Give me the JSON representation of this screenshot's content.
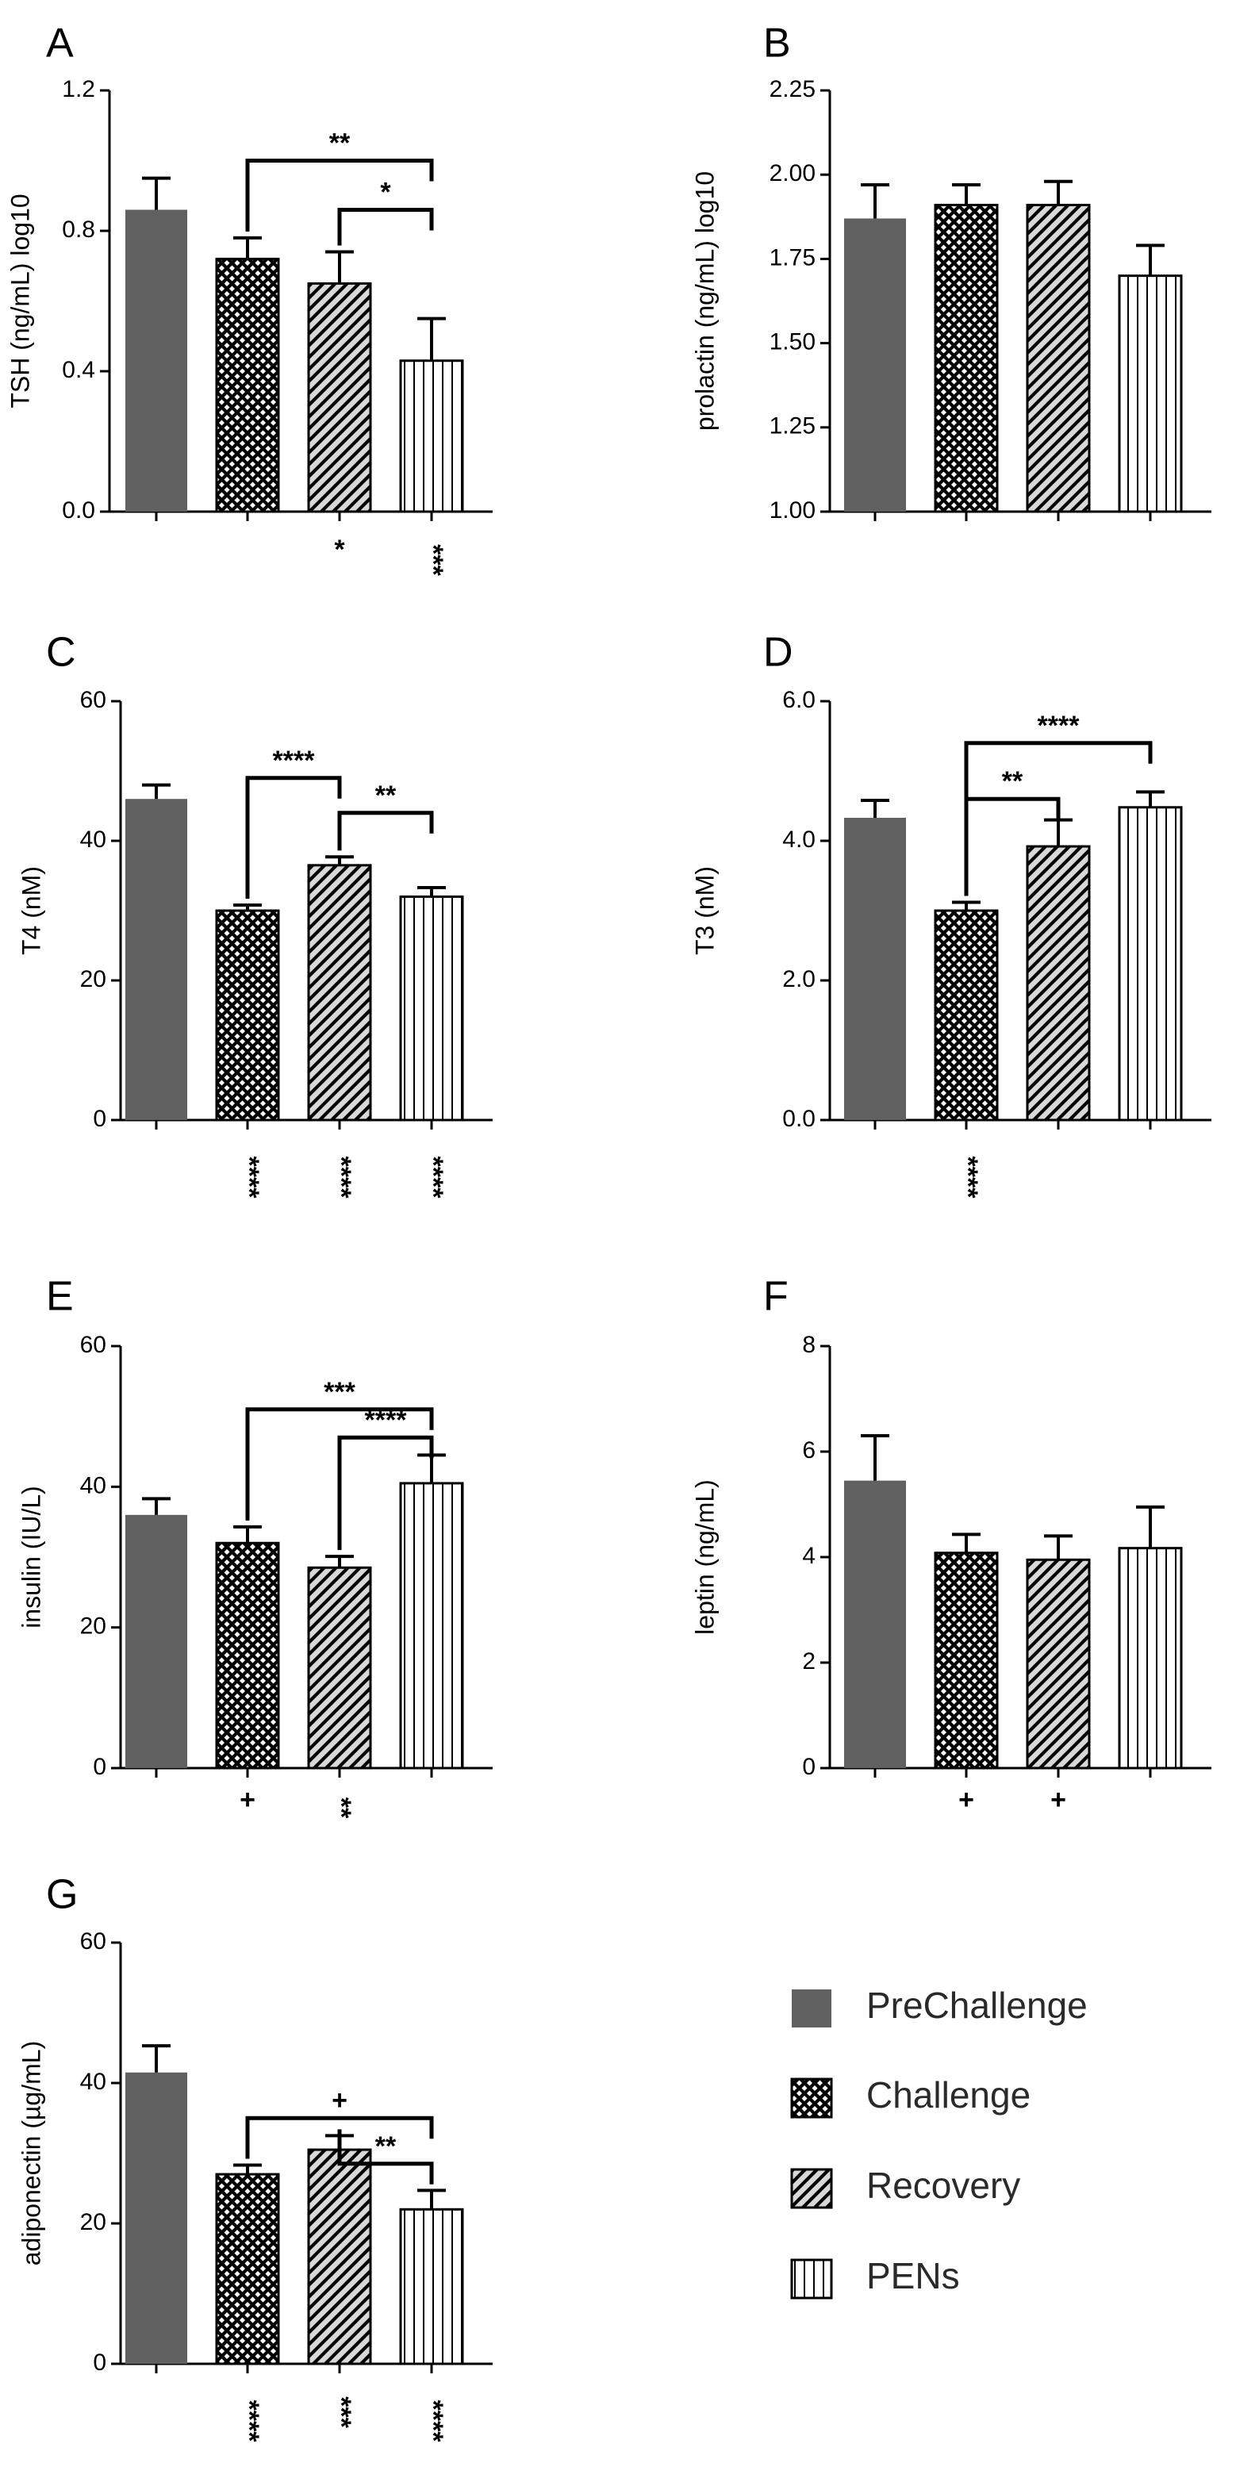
{
  "figure": {
    "groups": [
      "PreChallenge",
      "Challenge",
      "Recovery",
      "PENs"
    ],
    "legend": [
      {
        "label": "PreChallenge",
        "pattern": "solid"
      },
      {
        "label": "Challenge",
        "pattern": "crosshatch"
      },
      {
        "label": "Recovery",
        "pattern": "diagonal"
      },
      {
        "label": "PENs",
        "pattern": "vertical"
      }
    ]
  },
  "colors": {
    "solid": "#606060",
    "pattern_ink": "#000000",
    "pattern_bg": "#ffffff",
    "axis": "#000000"
  },
  "chart_data": [
    {
      "id": "A",
      "type": "bar",
      "title": "A",
      "ylabel": "TSH (ng/mL) log10",
      "ylim": [
        0.0,
        1.2
      ],
      "yticks": [
        0.0,
        0.4,
        0.8,
        1.2
      ],
      "ytick_labels": [
        "0.0",
        "0.4",
        "0.8",
        "1.2"
      ],
      "categories": [
        "PreChallenge",
        "Challenge",
        "Recovery",
        "PENs"
      ],
      "values": [
        0.86,
        0.72,
        0.65,
        0.43
      ],
      "errors": [
        0.09,
        0.06,
        0.09,
        0.12
      ],
      "below_labels": [
        "",
        "",
        "*",
        "***"
      ],
      "brackets": [
        {
          "from": 1,
          "to": 3,
          "label": "**",
          "level": 1.0
        },
        {
          "from": 2,
          "to": 3,
          "label": "*",
          "level": 0.86
        }
      ]
    },
    {
      "id": "B",
      "type": "bar",
      "title": "B",
      "ylabel": "prolactin (ng/mL) log10",
      "ylim": [
        1.0,
        2.25
      ],
      "yticks": [
        1.0,
        1.25,
        1.5,
        1.75,
        2.0,
        2.25
      ],
      "ytick_labels": [
        "1.00",
        "1.25",
        "1.50",
        "1.75",
        "2.00",
        "2.25"
      ],
      "categories": [
        "PreChallenge",
        "Challenge",
        "Recovery",
        "PENs"
      ],
      "values": [
        1.87,
        1.91,
        1.91,
        1.7
      ],
      "errors": [
        0.1,
        0.06,
        0.07,
        0.09
      ],
      "below_labels": [
        "",
        "",
        "",
        ""
      ],
      "brackets": []
    },
    {
      "id": "C",
      "type": "bar",
      "title": "C",
      "ylabel": "T4 (nM)",
      "ylim": [
        0,
        60
      ],
      "yticks": [
        0,
        20,
        40,
        60
      ],
      "ytick_labels": [
        "0",
        "20",
        "40",
        "60"
      ],
      "categories": [
        "PreChallenge",
        "Challenge",
        "Recovery",
        "PENs"
      ],
      "values": [
        46,
        30,
        36.5,
        32
      ],
      "errors": [
        2,
        0.8,
        1.2,
        1.3
      ],
      "below_labels": [
        "",
        "****",
        "****",
        "****"
      ],
      "brackets": [
        {
          "from": 1,
          "to": 2,
          "label": "****",
          "level": 49
        },
        {
          "from": 2,
          "to": 3,
          "label": "**",
          "level": 44
        }
      ]
    },
    {
      "id": "D",
      "type": "bar",
      "title": "D",
      "ylabel": "T3 (nM)",
      "ylim": [
        0.0,
        6.0
      ],
      "yticks": [
        0.0,
        2.0,
        4.0,
        6.0
      ],
      "ytick_labels": [
        "0.0",
        "2.0",
        "4.0",
        "6.0"
      ],
      "categories": [
        "PreChallenge",
        "Challenge",
        "Recovery",
        "PENs"
      ],
      "values": [
        4.33,
        3.0,
        3.92,
        4.48
      ],
      "errors": [
        0.25,
        0.12,
        0.38,
        0.22
      ],
      "below_labels": [
        "",
        "****",
        "",
        ""
      ],
      "brackets": [
        {
          "from": 1,
          "to": 3,
          "label": "****",
          "level": 5.4
        },
        {
          "from": 1,
          "to": 2,
          "label": "**",
          "level": 4.6
        }
      ]
    },
    {
      "id": "E",
      "type": "bar",
      "title": "E",
      "ylabel": "insulin (IU/L)",
      "ylim": [
        0,
        60
      ],
      "yticks": [
        0,
        20,
        40,
        60
      ],
      "ytick_labels": [
        "0",
        "20",
        "40",
        "60"
      ],
      "categories": [
        "PreChallenge",
        "Challenge",
        "Recovery",
        "PENs"
      ],
      "values": [
        36,
        32,
        28.5,
        40.5
      ],
      "errors": [
        2.3,
        2.3,
        1.6,
        4
      ],
      "below_labels": [
        "",
        "+",
        "**",
        ""
      ],
      "brackets": [
        {
          "from": 1,
          "to": 3,
          "label": "***",
          "level": 51
        },
        {
          "from": 2,
          "to": 3,
          "label": "****",
          "level": 47
        }
      ]
    },
    {
      "id": "F",
      "type": "bar",
      "title": "F",
      "ylabel": "leptin (ng/mL)",
      "ylim": [
        0,
        8
      ],
      "yticks": [
        0,
        2,
        4,
        6,
        8
      ],
      "ytick_labels": [
        "0",
        "2",
        "4",
        "6",
        "8"
      ],
      "categories": [
        "PreChallenge",
        "Challenge",
        "Recovery",
        "PENs"
      ],
      "values": [
        5.45,
        4.08,
        3.95,
        4.17
      ],
      "errors": [
        0.85,
        0.35,
        0.45,
        0.78
      ],
      "below_labels": [
        "",
        "+",
        "+",
        ""
      ],
      "brackets": []
    },
    {
      "id": "G",
      "type": "bar",
      "title": "G",
      "ylabel": "adiponectin (µg/mL)",
      "ylim": [
        0,
        60
      ],
      "yticks": [
        0,
        20,
        40,
        60
      ],
      "ytick_labels": [
        "0",
        "20",
        "40",
        "60"
      ],
      "categories": [
        "PreChallenge",
        "Challenge",
        "Recovery",
        "PENs"
      ],
      "values": [
        41.5,
        27,
        30.5,
        22
      ],
      "errors": [
        3.8,
        1.3,
        2,
        2.7
      ],
      "below_labels": [
        "",
        "****",
        "***",
        "****"
      ],
      "brackets": [
        {
          "from": 1,
          "to": 3,
          "label": "+",
          "level": 35
        },
        {
          "from": 2,
          "to": 3,
          "label": "**",
          "level": 28.5
        }
      ]
    }
  ]
}
